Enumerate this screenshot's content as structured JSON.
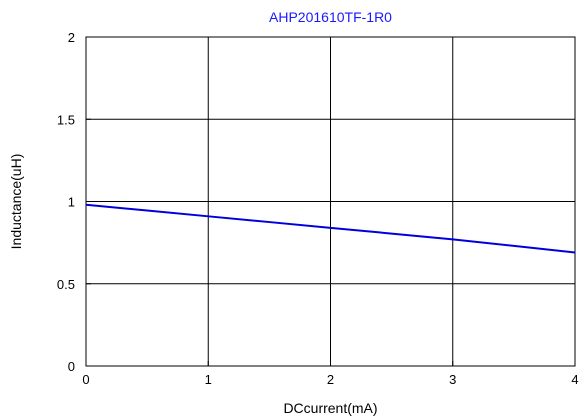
{
  "chart_data": {
    "type": "line",
    "title": "AHP201610TF-1R0",
    "xlabel": "DCcurrent(mA)",
    "ylabel": "Inductance(uH)",
    "xlim": [
      0,
      4
    ],
    "ylim": [
      0,
      2
    ],
    "x_ticks": [
      "0",
      "1",
      "2",
      "3",
      "4"
    ],
    "y_ticks": [
      "0",
      "0.5",
      "1",
      "1.5",
      "2"
    ],
    "x_tick_values": [
      0,
      1,
      2,
      3,
      4
    ],
    "y_tick_values": [
      0,
      0.5,
      1,
      1.5,
      2
    ],
    "grid": true,
    "series": [
      {
        "x": [
          0,
          0.5,
          1,
          1.5,
          2,
          2.5,
          3,
          3.5,
          4
        ],
        "y": [
          0.98,
          0.945,
          0.91,
          0.875,
          0.84,
          0.805,
          0.77,
          0.73,
          0.69
        ]
      }
    ],
    "colors": {
      "line": "#0000dd",
      "title": "#1a1aff",
      "grid": "#000000"
    }
  }
}
